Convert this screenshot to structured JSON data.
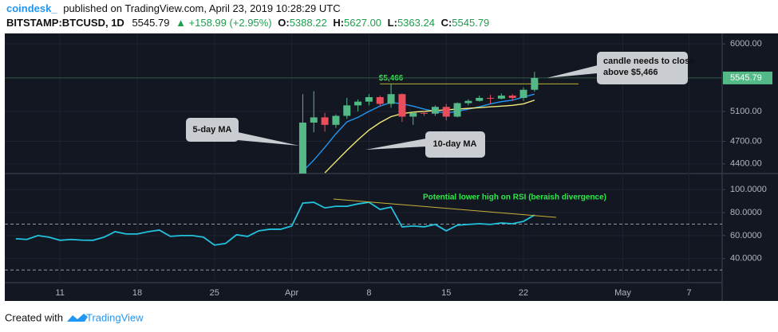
{
  "header": {
    "author": "coindesk_",
    "published": "published on TradingView.com, April 23, 2019 10:28:29 UTC",
    "symbol": "BITSTAMP:BTCUSD, 1D",
    "last": "5545.79",
    "change": "▲ +158.99 (+2.95%)",
    "ohlc": [
      {
        "label": "O:",
        "value": "5388.22"
      },
      {
        "label": "H:",
        "value": "5627.00"
      },
      {
        "label": "L:",
        "value": "5363.24"
      },
      {
        "label": "C:",
        "value": "5545.79"
      }
    ]
  },
  "chart_data": [
    {
      "type": "candlestick",
      "x": [
        "2019-04-02",
        "2019-04-03",
        "2019-04-04",
        "2019-04-05",
        "2019-04-06",
        "2019-04-07",
        "2019-04-08",
        "2019-04-09",
        "2019-04-10",
        "2019-04-11",
        "2019-04-12",
        "2019-04-13",
        "2019-04-14",
        "2019-04-15",
        "2019-04-16",
        "2019-04-17",
        "2019-04-18",
        "2019-04-19",
        "2019-04-20",
        "2019-04-21",
        "2019-04-22",
        "2019-04-23"
      ],
      "open": [
        4150,
        4950,
        5020,
        4920,
        5040,
        5180,
        5230,
        5290,
        5200,
        5330,
        5030,
        5080,
        5070,
        5160,
        5030,
        5210,
        5240,
        5280,
        5270,
        5310,
        5280,
        5388.22
      ],
      "high": [
        5330,
        5370,
        5080,
        5060,
        5280,
        5260,
        5330,
        5310,
        5466,
        5340,
        5100,
        5110,
        5180,
        5200,
        5220,
        5260,
        5310,
        5320,
        5340,
        5330,
        5420,
        5627
      ],
      "low": [
        4130,
        4820,
        4830,
        4880,
        5000,
        5100,
        5180,
        5170,
        5150,
        4960,
        4920,
        5040,
        5040,
        4980,
        5020,
        5180,
        5230,
        5200,
        5260,
        5240,
        5240,
        5363.24
      ],
      "close": [
        4950,
        5020,
        4920,
        5040,
        5180,
        5230,
        5290,
        5200,
        5330,
        5030,
        5080,
        5070,
        5160,
        5030,
        5210,
        5240,
        5280,
        5270,
        5310,
        5280,
        5388.22,
        5545.79
      ],
      "up_color": "#53b987",
      "down_color": "#eb4d5c",
      "series": [
        {
          "name": "5-day MA",
          "color": "#2196f3",
          "values": [
            4300,
            4450,
            4620,
            4800,
            4960,
            5020,
            5100,
            5170,
            5220,
            5200,
            5170,
            5130,
            5100,
            5080,
            5100,
            5130,
            5160,
            5200,
            5230,
            5250,
            5290,
            5330
          ]
        },
        {
          "name": "10-day MA",
          "color": "#f5e97a",
          "values": [
            null,
            null,
            4280,
            4430,
            4580,
            4720,
            4850,
            4950,
            5030,
            5070,
            5090,
            5100,
            5110,
            5120,
            5130,
            5140,
            5150,
            5160,
            5170,
            5180,
            5200,
            5250
          ]
        }
      ],
      "level": {
        "value": 5466,
        "label": "$5,466",
        "color": "#b9b22f"
      },
      "last_price_label": "5545.79",
      "annotation": [
        "candle needs to close",
        "above $5,466"
      ],
      "xlim": [
        "2019-03-06",
        "2019-05-10"
      ],
      "ylim": [
        4270,
        6140
      ],
      "yticks": [
        {
          "value": 6000,
          "label": "6000.00"
        },
        {
          "value": 5100,
          "label": "5100.00"
        },
        {
          "value": 4700,
          "label": "4700.00"
        },
        {
          "value": 4400,
          "label": "4400.00"
        }
      ]
    },
    {
      "type": "line",
      "x": [
        "2019-03-07",
        "2019-03-08",
        "2019-03-09",
        "2019-03-10",
        "2019-03-11",
        "2019-03-12",
        "2019-03-13",
        "2019-03-14",
        "2019-03-15",
        "2019-03-16",
        "2019-03-17",
        "2019-03-18",
        "2019-03-19",
        "2019-03-20",
        "2019-03-21",
        "2019-03-22",
        "2019-03-23",
        "2019-03-24",
        "2019-03-25",
        "2019-03-26",
        "2019-03-27",
        "2019-03-28",
        "2019-03-29",
        "2019-03-30",
        "2019-03-31",
        "2019-04-01",
        "2019-04-02",
        "2019-04-03",
        "2019-04-04",
        "2019-04-05",
        "2019-04-06",
        "2019-04-07",
        "2019-04-08",
        "2019-04-09",
        "2019-04-10",
        "2019-04-11",
        "2019-04-12",
        "2019-04-13",
        "2019-04-14",
        "2019-04-15",
        "2019-04-16",
        "2019-04-17",
        "2019-04-18",
        "2019-04-19",
        "2019-04-20",
        "2019-04-21",
        "2019-04-22",
        "2019-04-23"
      ],
      "values": [
        57.2,
        56.6,
        60,
        58.6,
        55.9,
        56.6,
        56,
        55.9,
        58.6,
        63.4,
        61.4,
        61.4,
        63.4,
        64.8,
        59.3,
        60,
        60,
        58.6,
        51.7,
        53.1,
        60.7,
        59.3,
        64.1,
        65.5,
        65.5,
        68.3,
        88.3,
        89,
        84.1,
        85.5,
        85.5,
        87.6,
        89,
        82.8,
        84.8,
        67.6,
        68.3,
        67.6,
        69.7,
        64.1,
        69,
        69.7,
        70.3,
        69.7,
        71,
        70.3,
        72.4,
        77.9
      ],
      "color": "#22c1dd",
      "bands": [
        70,
        30
      ],
      "annotation": "Potential lower high on RSI (beraish divergence)",
      "xlim": [
        "2019-03-06",
        "2019-05-10"
      ],
      "xticks": [
        {
          "value": "2019-03-11",
          "label": "11"
        },
        {
          "value": "2019-03-18",
          "label": "18"
        },
        {
          "value": "2019-03-25",
          "label": "25"
        },
        {
          "value": "2019-04-01",
          "label": "Apr"
        },
        {
          "value": "2019-04-08",
          "label": "8"
        },
        {
          "value": "2019-04-15",
          "label": "15"
        },
        {
          "value": "2019-04-22",
          "label": "22"
        },
        {
          "value": "2019-05-01",
          "label": "May"
        },
        {
          "value": "2019-05-07",
          "label": "7"
        }
      ],
      "ylim": [
        19,
        114
      ],
      "yticks": [
        {
          "value": 100,
          "label": "100.0000"
        },
        {
          "value": 80,
          "label": "80.0000"
        },
        {
          "value": 60,
          "label": "60.0000"
        },
        {
          "value": 40,
          "label": "40.0000"
        }
      ]
    }
  ],
  "footer": {
    "created": "Created with",
    "brand": "TradingView"
  }
}
